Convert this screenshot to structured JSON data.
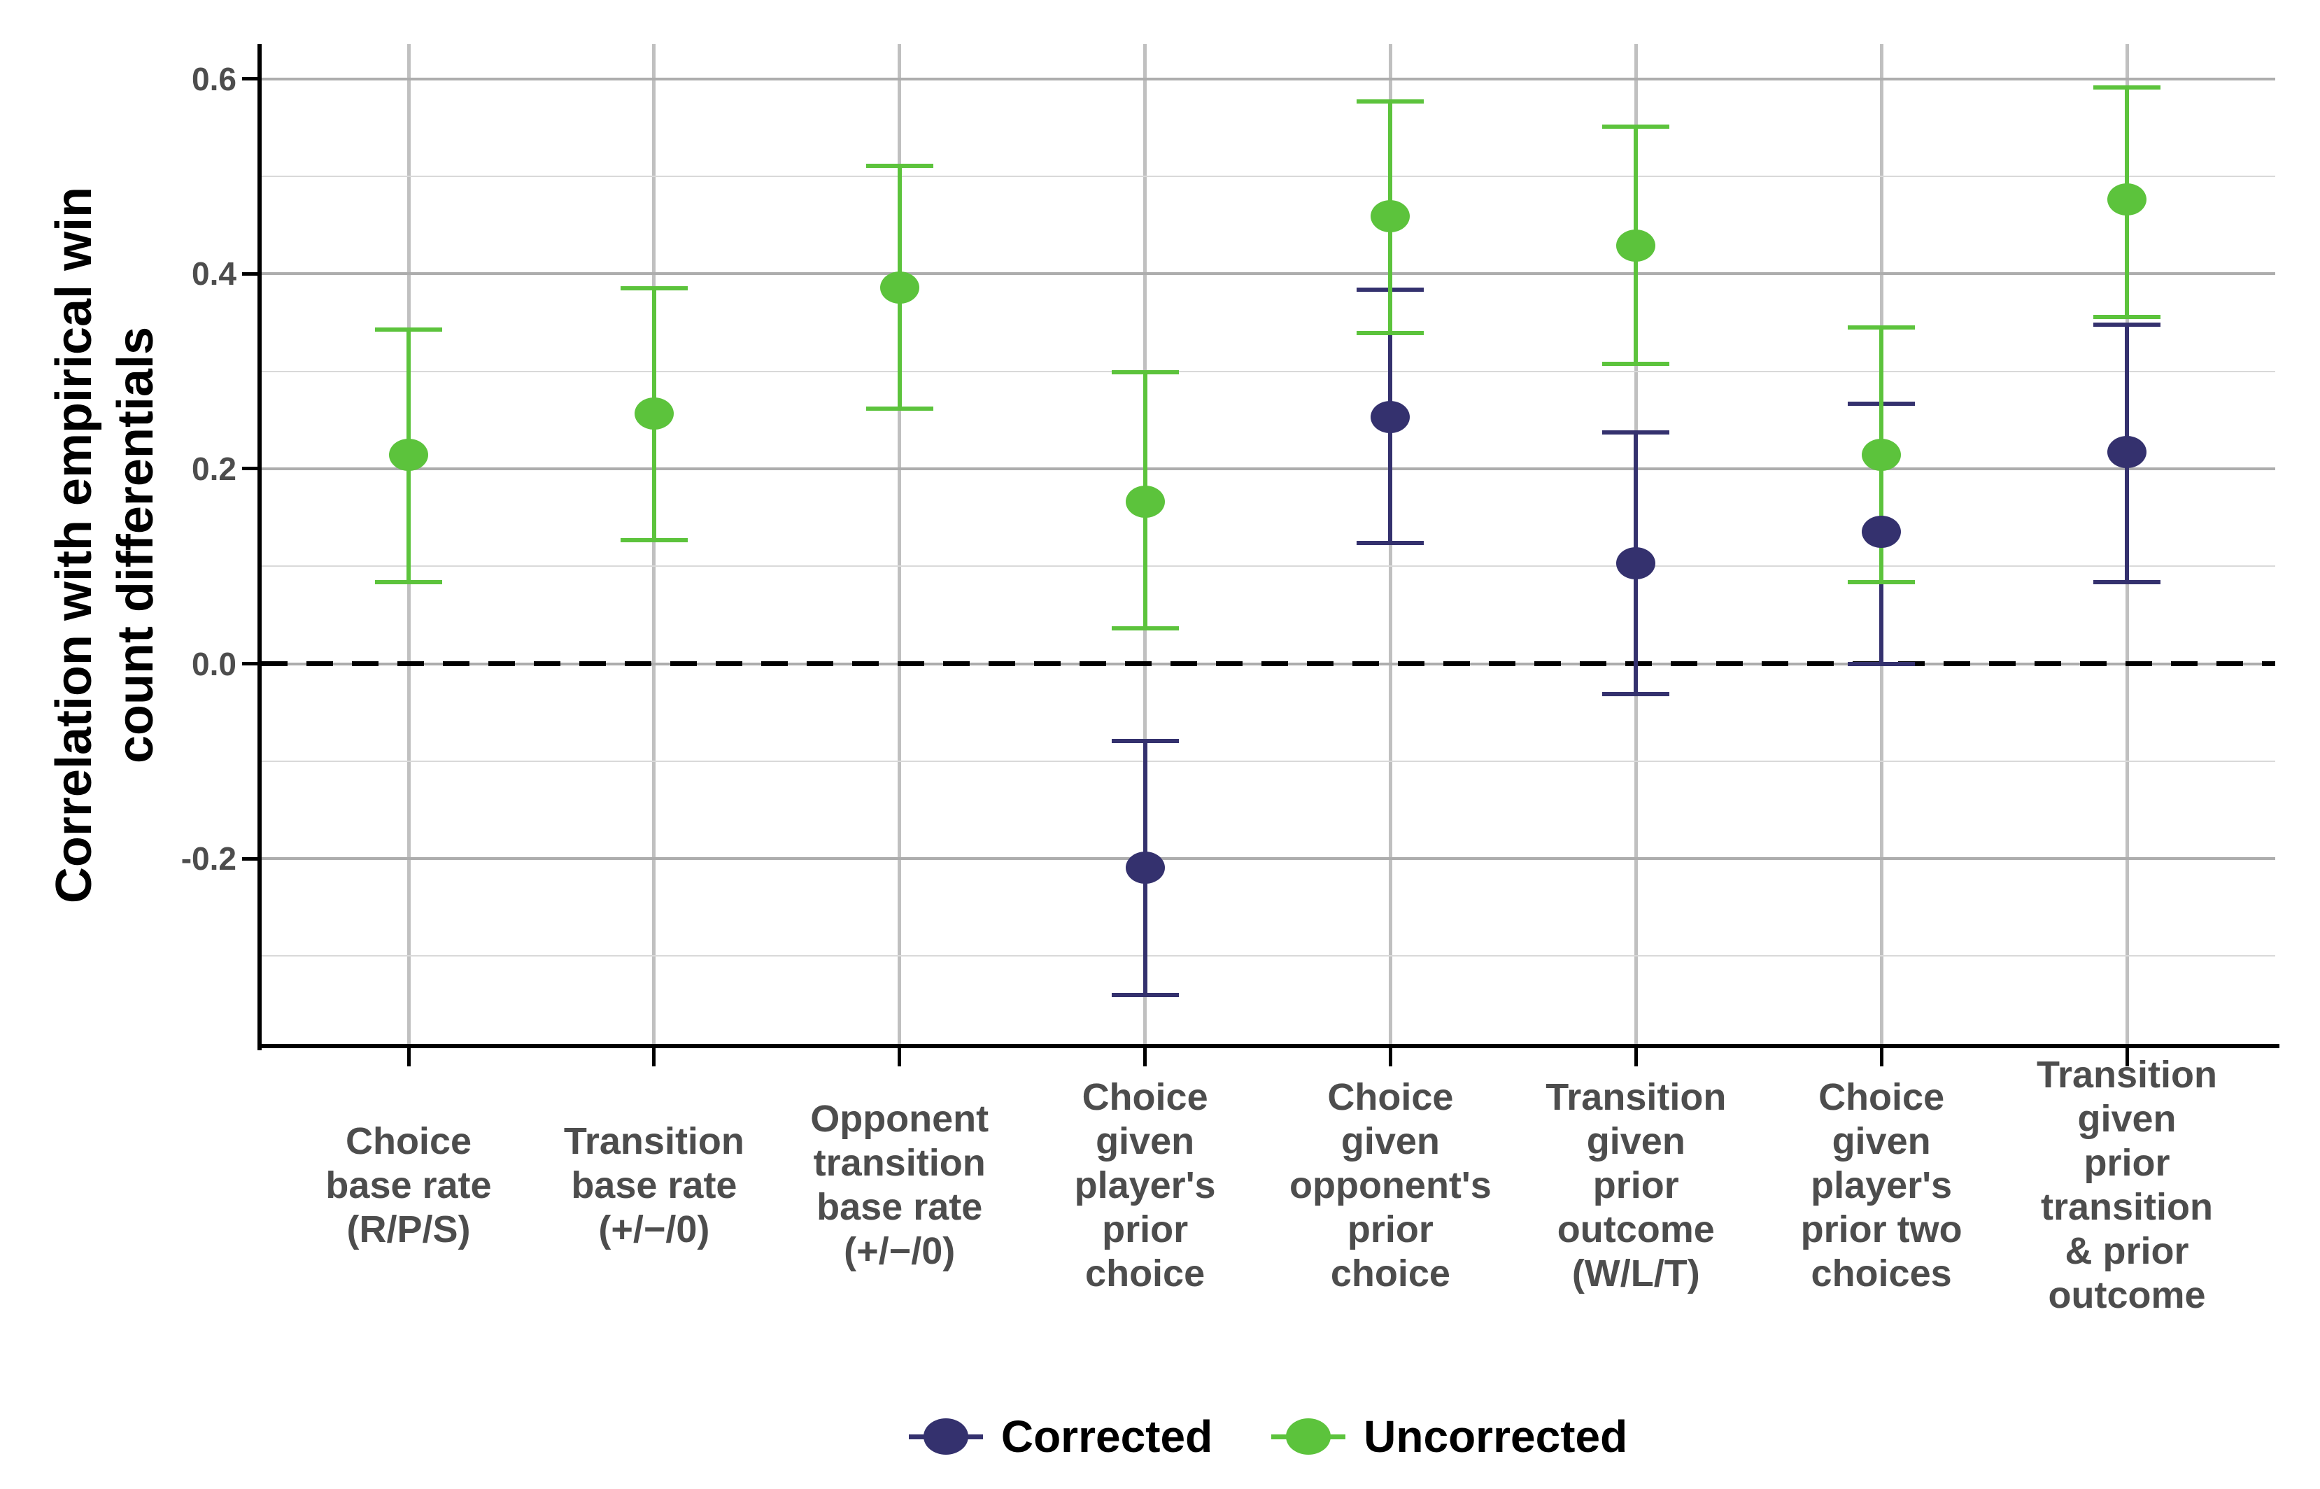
{
  "y_axis": {
    "title_lines": [
      "Correlation with empirical win",
      "count differentials"
    ],
    "ticks": [
      {
        "label": "0.6",
        "value": 0.6
      },
      {
        "label": "0.4",
        "value": 0.4
      },
      {
        "label": "0.2",
        "value": 0.2
      },
      {
        "label": "0.0",
        "value": 0.0
      },
      {
        "label": "-0.2",
        "value": -0.2
      }
    ]
  },
  "legend": {
    "items": [
      {
        "label": "Corrected",
        "color": "#34316e"
      },
      {
        "label": "Uncorrected",
        "color": "#5cc33c"
      }
    ]
  },
  "chart_data": {
    "type": "pointrange",
    "title": "",
    "xlabel": "",
    "ylabel": "Correlation with empirical win count differentials",
    "ylim": [
      -0.39,
      0.64
    ],
    "grid": true,
    "legend_position": "bottom",
    "y_major_gridlines": [
      0.6,
      0.4,
      0.2,
      0.0,
      -0.2
    ],
    "y_minor_gridlines": [
      0.5,
      0.3,
      0.1,
      -0.1,
      -0.3
    ],
    "zero_reference_line": {
      "value": 0.0,
      "style": "dashed",
      "color": "#000000"
    },
    "categories": [
      "Choice\nbase rate\n(R/P/S)",
      "Transition\nbase rate\n(+/−/0)",
      "Opponent\ntransition\nbase rate\n(+/−/0)",
      "Choice\ngiven\nplayer's\nprior\nchoice",
      "Choice\ngiven\nopponent's\nprior\nchoice",
      "Transition\ngiven\nprior\noutcome\n(W/L/T)",
      "Choice\ngiven\nplayer's\nprior two\nchoices",
      "Transition\ngiven\nprior\ntransition\n& prior\noutcome"
    ],
    "series": [
      {
        "name": "Corrected",
        "color": "#34316e",
        "points": [
          null,
          null,
          null,
          {
            "value": -0.209,
            "lower": -0.34,
            "upper": -0.079
          },
          {
            "value": 0.253,
            "lower": 0.124,
            "upper": 0.384
          },
          {
            "value": 0.103,
            "lower": -0.031,
            "upper": 0.237
          },
          {
            "value": 0.135,
            "lower": 0.0,
            "upper": 0.267
          },
          {
            "value": 0.217,
            "lower": 0.084,
            "upper": 0.348
          }
        ]
      },
      {
        "name": "Uncorrected",
        "color": "#5cc33c",
        "points": [
          {
            "value": 0.214,
            "lower": 0.084,
            "upper": 0.343
          },
          {
            "value": 0.257,
            "lower": 0.127,
            "upper": 0.385
          },
          {
            "value": 0.386,
            "lower": 0.262,
            "upper": 0.511
          },
          {
            "value": 0.166,
            "lower": 0.036,
            "upper": 0.299
          },
          {
            "value": 0.459,
            "lower": 0.339,
            "upper": 0.577
          },
          {
            "value": 0.429,
            "lower": 0.308,
            "upper": 0.551
          },
          {
            "value": 0.214,
            "lower": 0.084,
            "upper": 0.345
          },
          {
            "value": 0.476,
            "lower": 0.356,
            "upper": 0.591
          }
        ]
      }
    ]
  },
  "colors": {
    "grid_vertical": "#c0c0c0",
    "grid_major": "#adadad",
    "grid_minor": "#d9d9d9",
    "axis_line": "#000000",
    "tick_text": "#4d4d4d",
    "category_text": "#4d4d4d"
  }
}
